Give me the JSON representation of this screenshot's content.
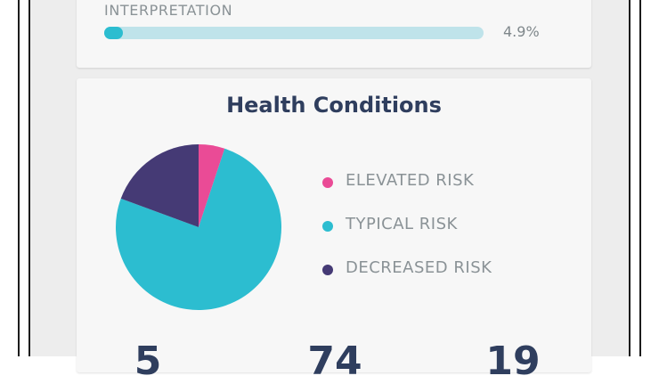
{
  "interpretation": {
    "label": "INTERPRETATION",
    "percent_text": "4.9%",
    "percent_value": 4.9
  },
  "health_conditions": {
    "title": "Health Conditions",
    "legend": [
      {
        "label": "ELEVATED RISK",
        "color": "#ea4b96"
      },
      {
        "label": "TYPICAL RISK",
        "color": "#2cbdd0"
      },
      {
        "label": "DECREASED RISK",
        "color": "#453a75"
      }
    ],
    "counts": [
      "5",
      "74",
      "19"
    ]
  },
  "chart_data": {
    "type": "pie",
    "categories": [
      "ELEVATED RISK",
      "TYPICAL RISK",
      "DECREASED RISK"
    ],
    "values": [
      5,
      74,
      19
    ],
    "colors": [
      "#ea4b96",
      "#2cbdd0",
      "#453a75"
    ],
    "start_angle_deg": 0,
    "direction": "clockwise",
    "title": "Health Conditions"
  }
}
